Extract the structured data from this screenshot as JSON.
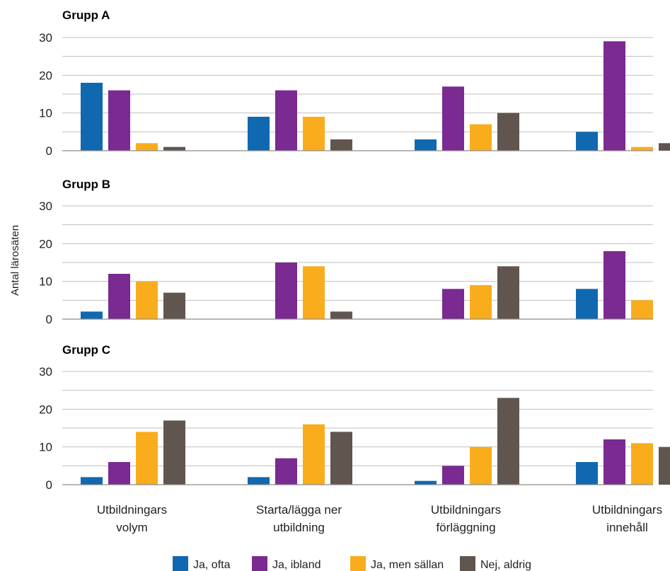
{
  "chart_data": {
    "type": "bar",
    "ylabel": "Antal lärosäten",
    "categories": [
      [
        "Utbildningars",
        "volym"
      ],
      [
        "Starta/lägga ner",
        "utbildning"
      ],
      [
        "Utbildningars",
        "förläggning"
      ],
      [
        "Utbildningars",
        "innehåll"
      ]
    ],
    "ylim": [
      0,
      30
    ],
    "yticks": [
      0,
      10,
      20,
      30
    ],
    "grid": true,
    "legend_position": "bottom",
    "series_names": [
      "Ja, ofta",
      "Ja, ibland",
      "Ja, men sällan",
      "Nej, aldrig"
    ],
    "colors": [
      "#1068b0",
      "#7a2a90",
      "#f9ad1c",
      "#61554f"
    ],
    "panels": [
      {
        "title": "Grupp A",
        "values": [
          [
            18,
            9,
            3,
            5
          ],
          [
            16,
            16,
            17,
            29
          ],
          [
            2,
            9,
            7,
            1
          ],
          [
            1,
            3,
            10,
            2
          ]
        ]
      },
      {
        "title": "Grupp B",
        "values": [
          [
            2,
            0,
            0,
            8
          ],
          [
            12,
            15,
            8,
            18
          ],
          [
            10,
            14,
            9,
            5
          ],
          [
            7,
            2,
            14,
            0
          ]
        ]
      },
      {
        "title": "Grupp C",
        "values": [
          [
            2,
            2,
            1,
            6
          ],
          [
            6,
            7,
            5,
            12
          ],
          [
            14,
            16,
            10,
            11
          ],
          [
            17,
            14,
            23,
            10
          ]
        ]
      }
    ]
  }
}
